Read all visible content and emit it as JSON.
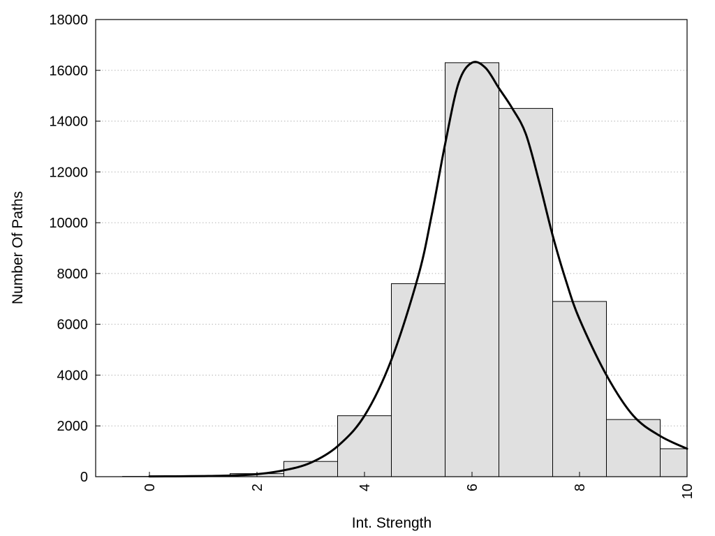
{
  "chart_data": {
    "type": "bar",
    "title": "",
    "xlabel": "Int. Strength",
    "ylabel": "Number Of Paths",
    "xlim": [
      -1,
      10
    ],
    "ylim": [
      0,
      18000
    ],
    "x_ticks": [
      0,
      2,
      4,
      6,
      8,
      10
    ],
    "y_ticks": [
      0,
      2000,
      4000,
      6000,
      8000,
      10000,
      12000,
      14000,
      16000,
      18000
    ],
    "grid": "horizontal dotted",
    "bar_width": 1,
    "bars": {
      "x": [
        0,
        1,
        2,
        3,
        4,
        5,
        6,
        7,
        8,
        9,
        10
      ],
      "values": [
        10,
        30,
        120,
        600,
        2400,
        7600,
        16300,
        14500,
        6900,
        2250,
        1100
      ]
    },
    "curve": {
      "x": [
        0,
        0.5,
        1,
        1.5,
        2,
        2.5,
        3,
        3.5,
        4,
        4.5,
        5,
        5.25,
        5.5,
        5.75,
        6,
        6.25,
        6.5,
        6.75,
        7,
        7.25,
        7.5,
        7.75,
        8,
        8.5,
        9,
        9.5,
        10
      ],
      "values": [
        10,
        15,
        25,
        45,
        100,
        250,
        550,
        1200,
        2400,
        4600,
        7900,
        10300,
        13100,
        15500,
        16300,
        16100,
        15300,
        14500,
        13500,
        11600,
        9500,
        7700,
        6200,
        4000,
        2400,
        1600,
        1100
      ]
    },
    "bar_color": "#e0e0e0",
    "bar_edge_color": "#000000",
    "line_color": "#000000"
  }
}
